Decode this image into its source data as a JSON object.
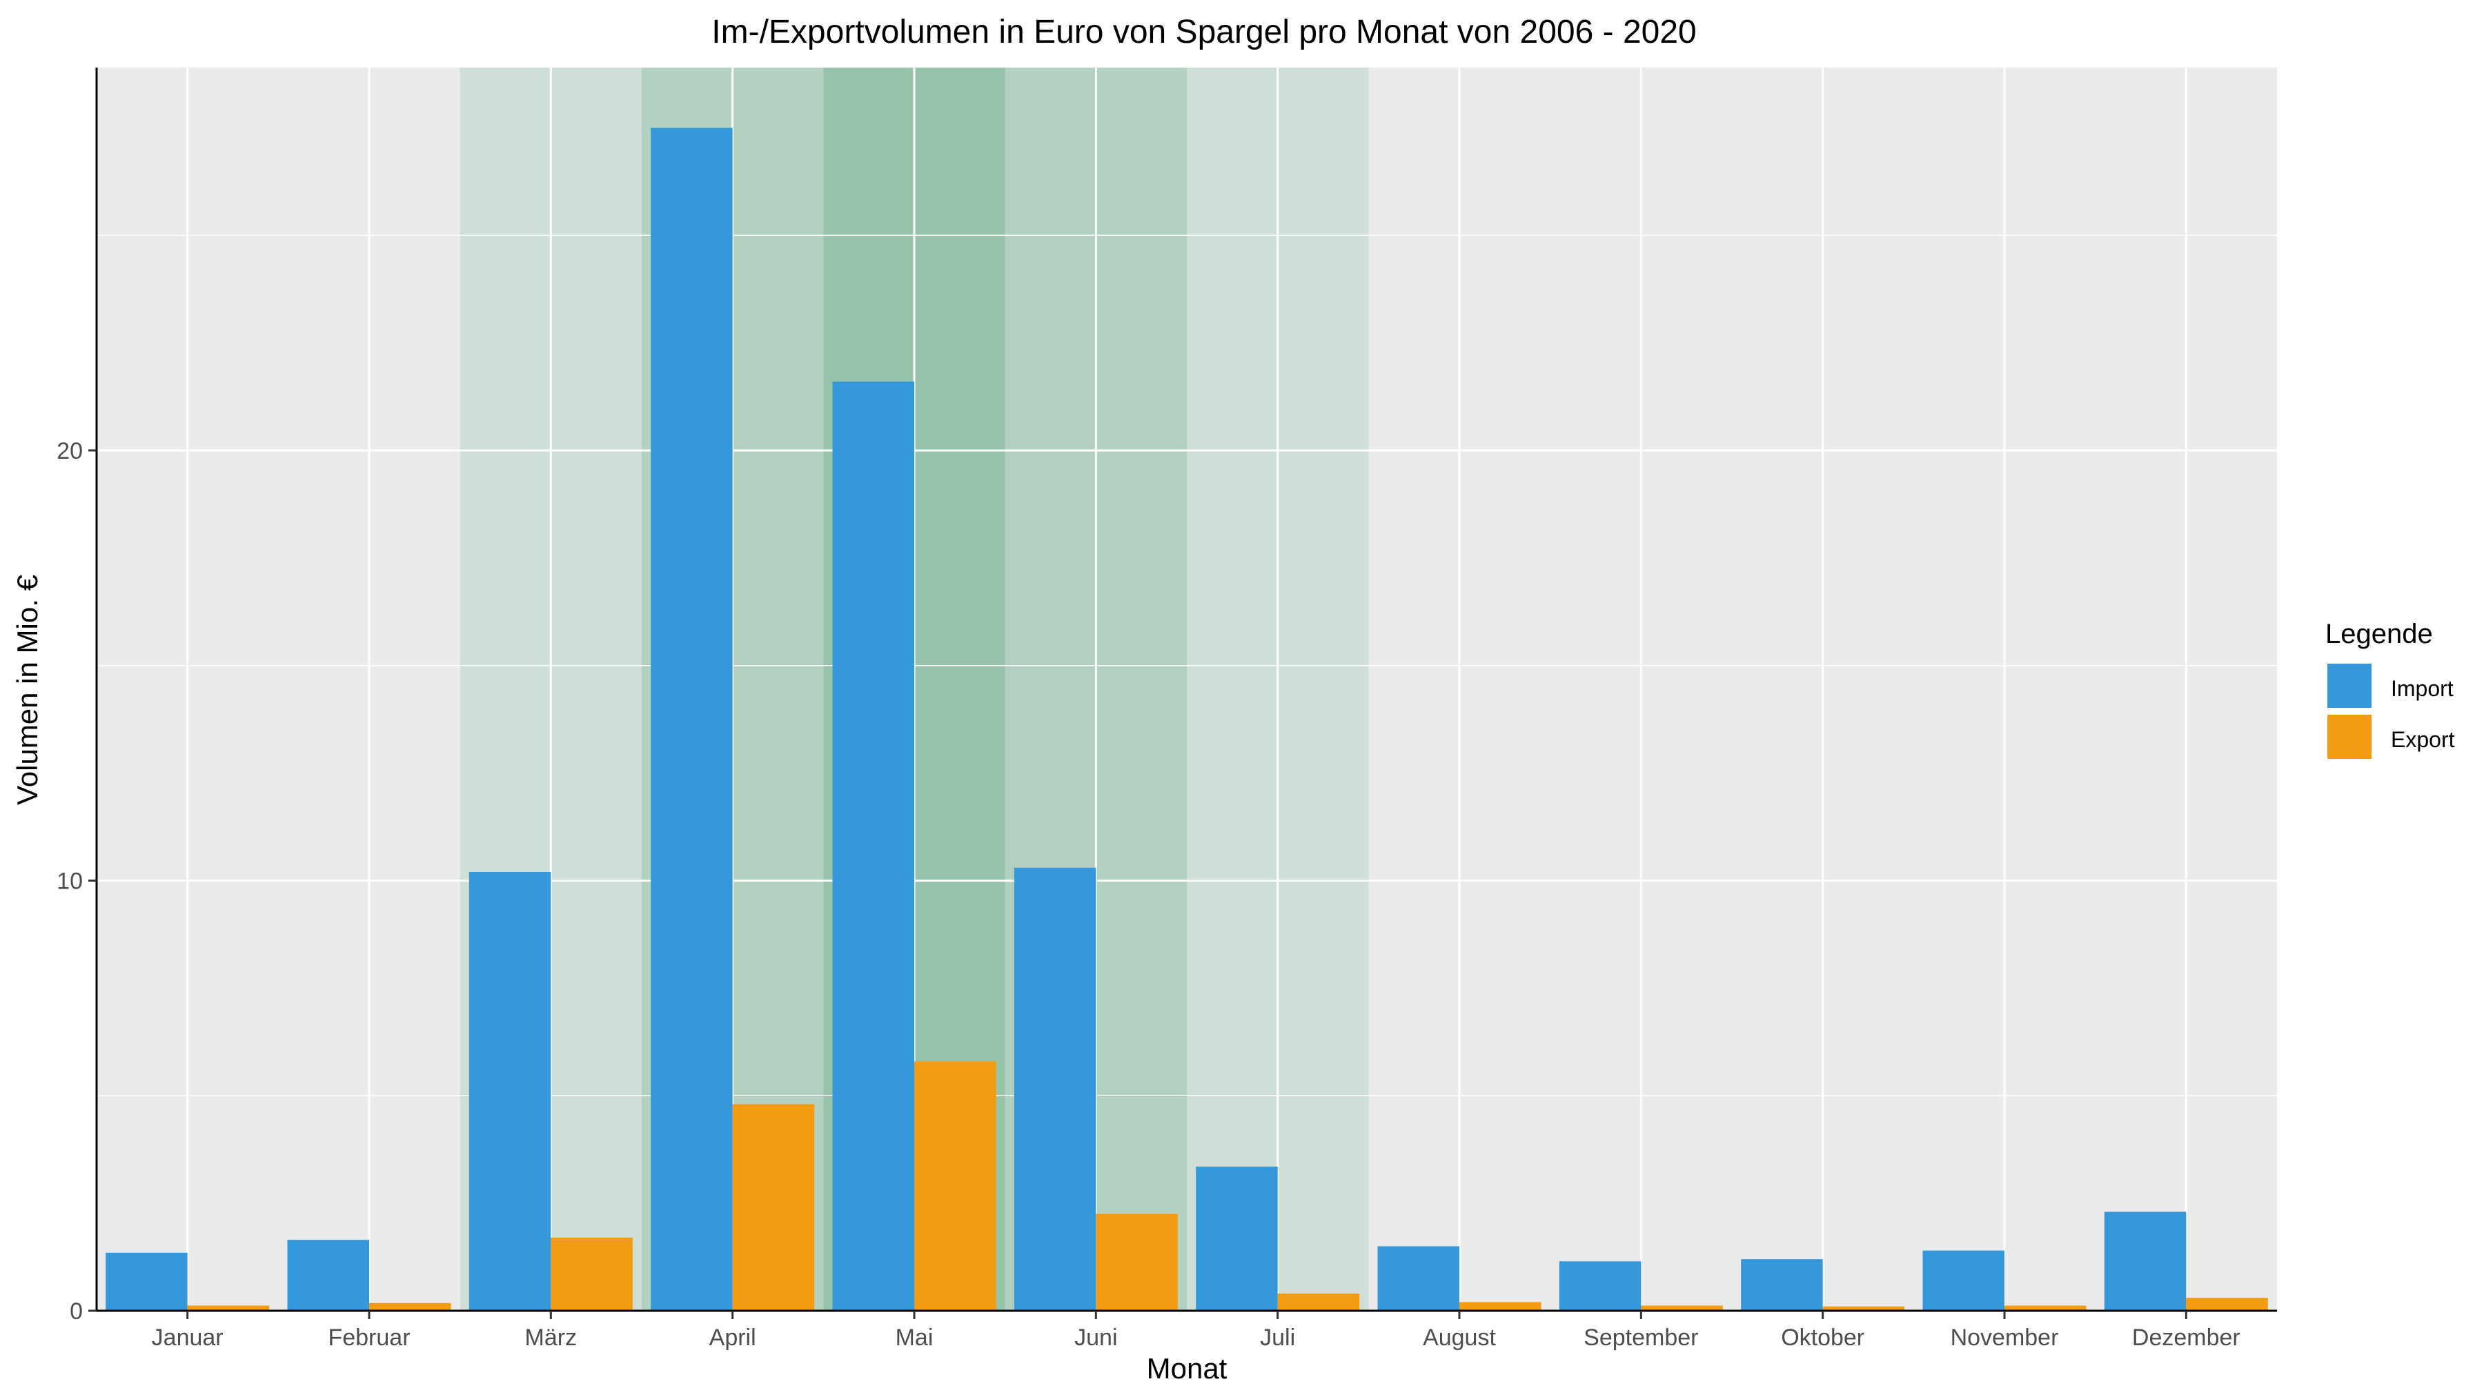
{
  "chart_data": {
    "type": "bar",
    "title": "Im-/Exportvolumen in Euro von Spargel pro Monat von 2006 - 2020",
    "xlabel": "Monat",
    "ylabel": "Volumen in Mio. €",
    "categories": [
      "Januar",
      "Februar",
      "März",
      "April",
      "Mai",
      "Juni",
      "Juli",
      "August",
      "September",
      "Oktober",
      "November",
      "Dezember"
    ],
    "series": [
      {
        "name": "Import",
        "color": "#3498db",
        "values": [
          1.35,
          1.65,
          10.2,
          27.5,
          21.6,
          10.3,
          3.35,
          1.5,
          1.15,
          1.2,
          1.4,
          2.3
        ]
      },
      {
        "name": "Export",
        "color": "#f39c12",
        "values": [
          0.12,
          0.18,
          1.7,
          4.8,
          5.8,
          2.25,
          0.4,
          0.2,
          0.12,
          0.1,
          0.12,
          0.3
        ]
      }
    ],
    "ylim": [
      0,
      28.9
    ],
    "yticks": [
      0,
      10,
      20
    ],
    "grid": true,
    "legend": {
      "title": "Legende",
      "position": "right"
    },
    "season_highlight": [
      {
        "category": "März",
        "intensity": 1
      },
      {
        "category": "April",
        "intensity": 2
      },
      {
        "category": "Mai",
        "intensity": 3
      },
      {
        "category": "Juni",
        "intensity": 2
      },
      {
        "category": "Juli",
        "intensity": 1
      }
    ],
    "colors": {
      "panel": "#ebebeb",
      "grid": "#ffffff",
      "highlight": "#5fa980"
    }
  }
}
